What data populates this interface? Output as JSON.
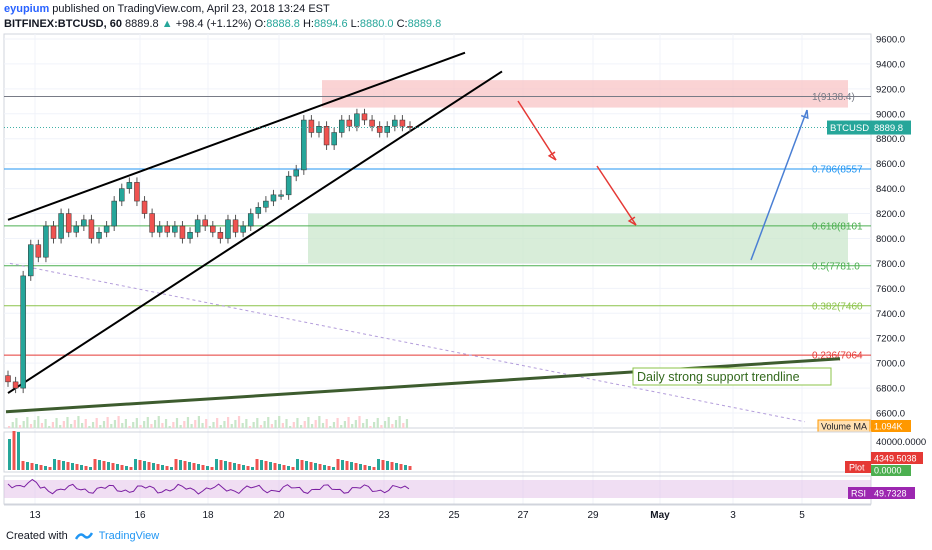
{
  "header": {
    "author": "eyupium",
    "published": "published on TradingView.com, April 23, 2018 13:24 EST",
    "symbol": "BITFINEX:BTCUSD, 60",
    "last": "8889.8",
    "change": "+98.4 (+1.12%)",
    "ohlc": {
      "o_label": "O:",
      "o": "8888.8",
      "h_label": "H:",
      "h": "8894.6",
      "l_label": "L:",
      "l": "8880.0",
      "c_label": "C:",
      "c": "8889.8"
    }
  },
  "footer": {
    "created_with": "Created with",
    "brand": "TradingView"
  },
  "colors": {
    "up": "#26a69a",
    "down": "#ef5350",
    "fib_blue": "#2196f3",
    "fib_green": "#4caf50",
    "fib_lime": "#8bc34a",
    "fib_red": "#e53935",
    "support": "#3d5c2e",
    "resist_zone": "#f8c4c6",
    "support_zone": "#c8e6c9",
    "rsi_band": "#e1bee7"
  },
  "chart_data": {
    "type": "candlestick",
    "price_axis": {
      "ticks": [
        "9600.0",
        "9400.0",
        "9200.0",
        "9000.0",
        "8800.0",
        "8600.0",
        "8400.0",
        "8200.0",
        "8000.0",
        "7800.0",
        "7600.0",
        "7400.0",
        "7200.0",
        "7000.0",
        "6800.0",
        "6600.0"
      ],
      "range": [
        6480,
        9640
      ]
    },
    "time_axis": {
      "ticks": [
        "13",
        "16",
        "18",
        "20",
        "23",
        "25",
        "27",
        "29",
        "May",
        "3",
        "5"
      ]
    },
    "last_price": {
      "label": "BTCUSD",
      "value": 8889.8,
      "text": "8889.8"
    },
    "fib_levels": [
      {
        "label": "1(9138.4)",
        "value": 9138.4,
        "color": "#787b86"
      },
      {
        "label": "0.786(8557",
        "value": 8557,
        "color": "#2196f3"
      },
      {
        "label": "0.618(8101",
        "value": 8101,
        "color": "#4caf50"
      },
      {
        "label": "0.5(7781.0",
        "value": 7781,
        "color": "#4caf50"
      },
      {
        "label": "0.382(7460",
        "value": 7460,
        "color": "#8bc34a"
      },
      {
        "label": "0.236(7064",
        "value": 7064,
        "color": "#e53935"
      }
    ],
    "resistance_zone": [
      9050,
      9270
    ],
    "support_zone": [
      7800,
      8200
    ],
    "annotation": "Daily strong support trendline",
    "volume": {
      "label": "Volume MA",
      "value_text": "1.094K"
    },
    "plot": {
      "label": "Plot",
      "upper_text": "40000.0000",
      "value_text": "4349.5038",
      "zero_text": "0.0000"
    },
    "rsi": {
      "label": "RSI",
      "value_text": "49.7328",
      "value": 49.7328
    },
    "closes": [
      6850,
      6800,
      7700,
      7950,
      7850,
      8100,
      8000,
      8200,
      8050,
      8100,
      8150,
      8000,
      8050,
      8100,
      8300,
      8400,
      8450,
      8300,
      8200,
      8050,
      8100,
      8050,
      8100,
      8000,
      8050,
      8150,
      8100,
      8050,
      8000,
      8150,
      8050,
      8100,
      8200,
      8250,
      8300,
      8350,
      8350,
      8500,
      8550,
      8950,
      8850,
      8900,
      8750,
      8850,
      8950,
      8900,
      9000,
      8950,
      8900,
      8850,
      8900,
      8950,
      8900,
      8890
    ]
  }
}
